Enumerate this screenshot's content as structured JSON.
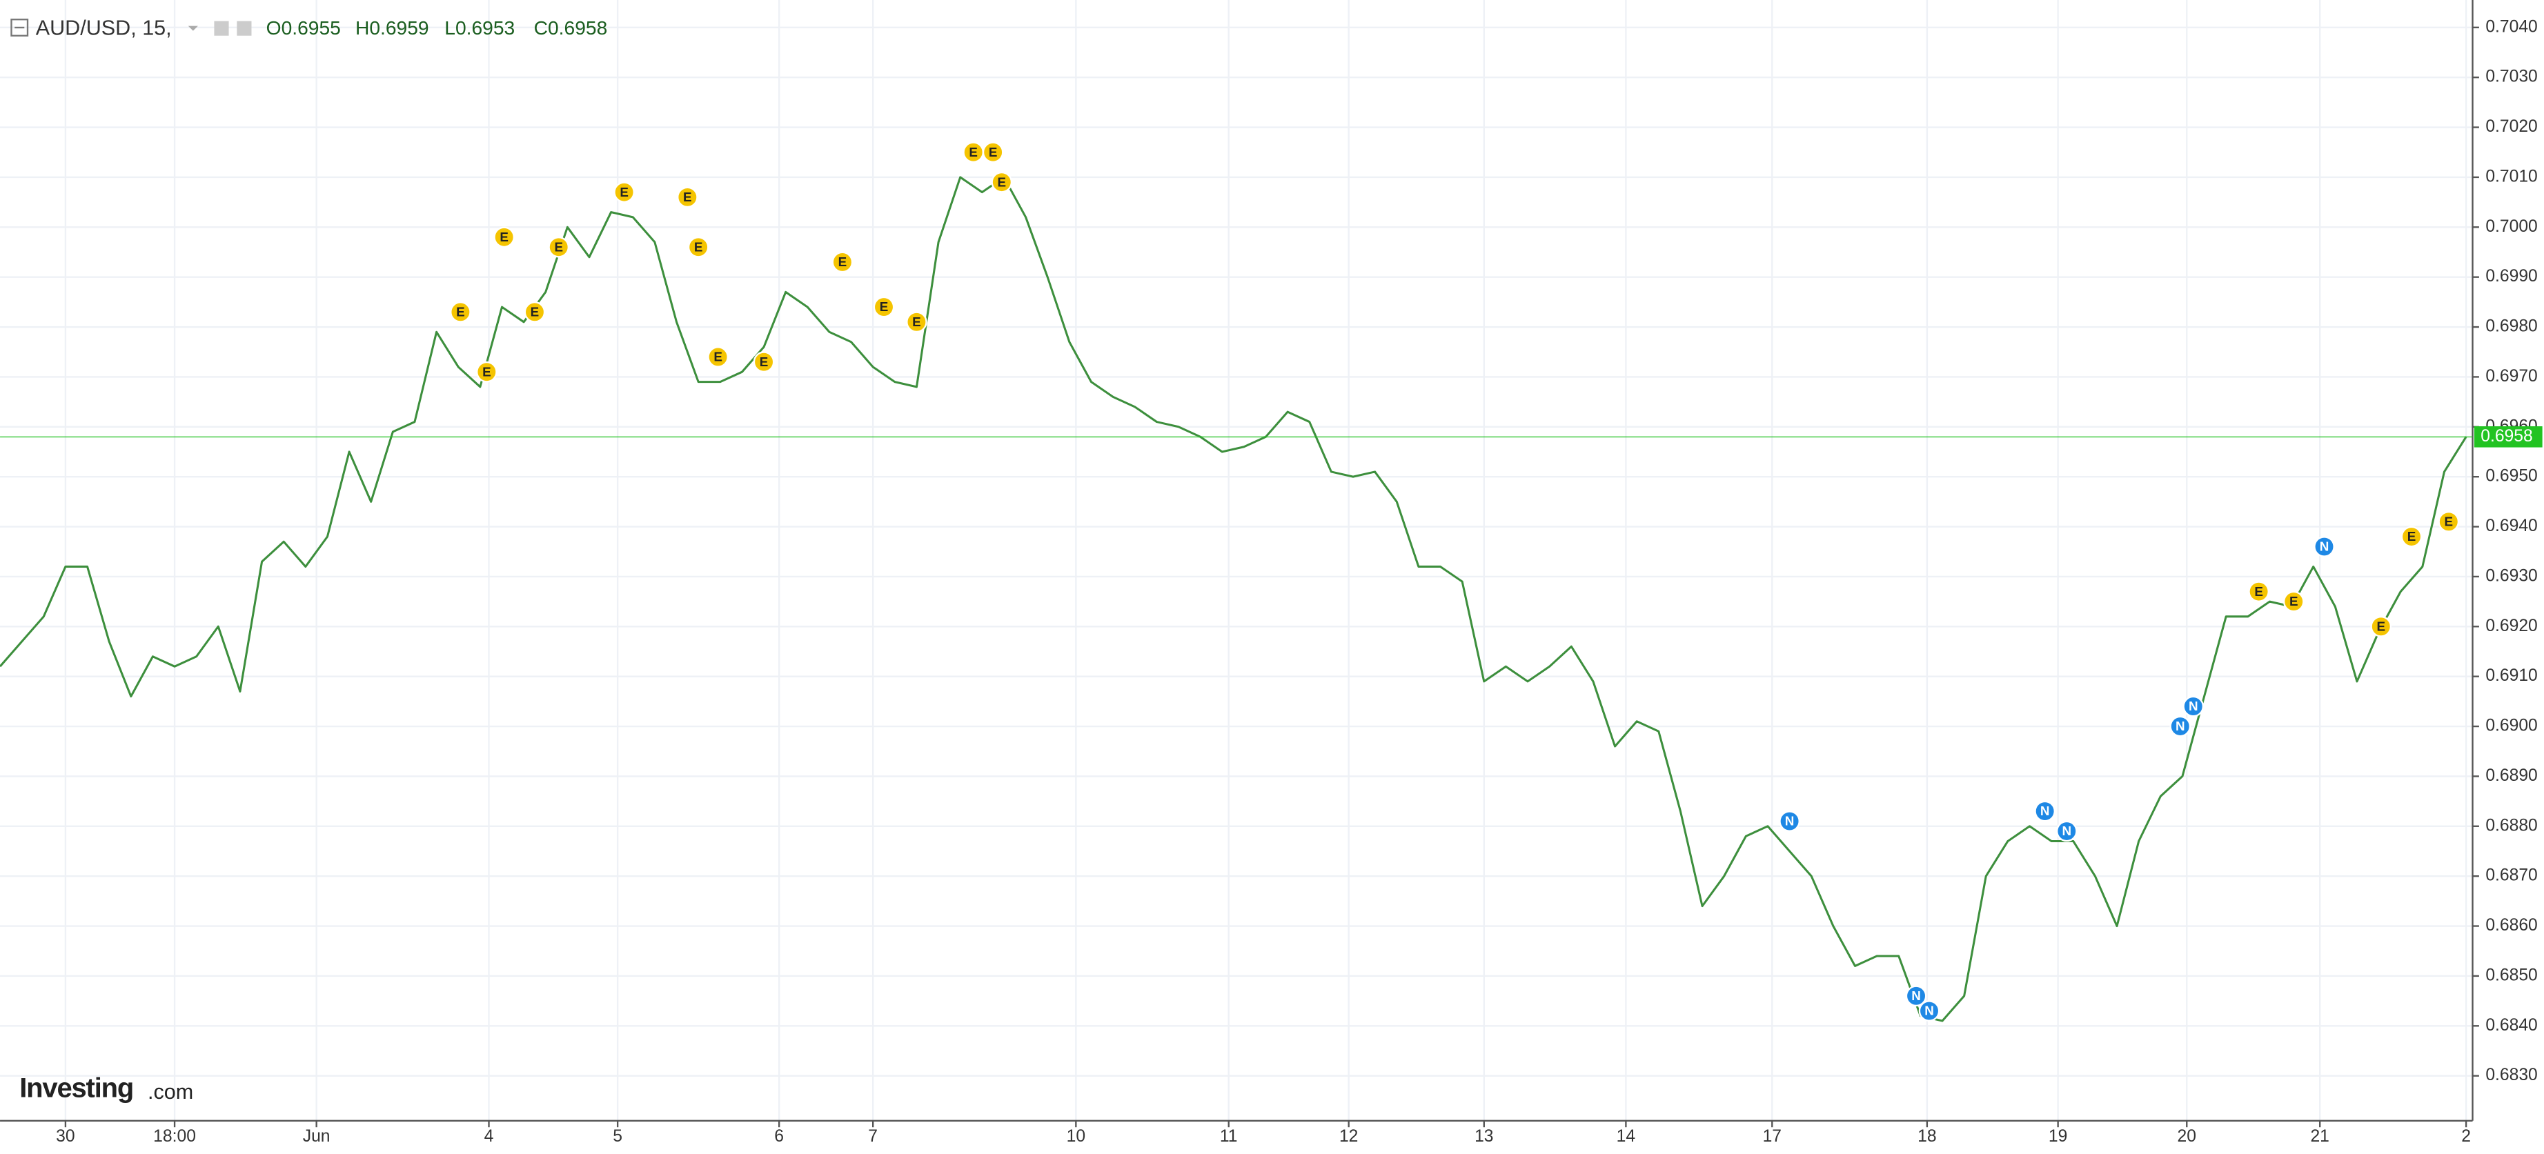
{
  "chart_data": {
    "type": "line",
    "symbol": "AUD/USD, 15,",
    "ohlc": [
      "O0.6955",
      "H0.6959",
      "L0.6953",
      "C0.6958"
    ],
    "brand": "Investing",
    "brand_suffix": ".com",
    "color": "#3d8f3d",
    "values": [
      0.6912,
      0.6917,
      0.6922,
      0.6932,
      0.6932,
      0.6917,
      0.6906,
      0.6914,
      0.6912,
      0.6914,
      0.692,
      0.6907,
      0.6933,
      0.6937,
      0.6932,
      0.6938,
      0.6955,
      0.6945,
      0.6959,
      0.6961,
      0.6979,
      0.6972,
      0.6968,
      0.6984,
      0.6981,
      0.6987,
      0.7,
      0.6994,
      0.7003,
      0.7002,
      0.6997,
      0.6981,
      0.6969,
      0.6969,
      0.6971,
      0.6976,
      0.6987,
      0.6984,
      0.6979,
      0.6977,
      0.6972,
      0.6969,
      0.6968,
      0.6997,
      0.701,
      0.7007,
      0.701,
      0.7002,
      0.699,
      0.6977,
      0.6969,
      0.6966,
      0.6964,
      0.6961,
      0.696,
      0.6958,
      0.6955,
      0.6956,
      0.6958,
      0.6963,
      0.6961,
      0.6951,
      0.695,
      0.6951,
      0.6945,
      0.6932,
      0.6932,
      0.6929,
      0.6909,
      0.6912,
      0.6909,
      0.6912,
      0.6916,
      0.6909,
      0.6896,
      0.6901,
      0.6899,
      0.6883,
      0.6864,
      0.687,
      0.6878,
      0.688,
      0.6875,
      0.687,
      0.686,
      0.6852,
      0.6854,
      0.6854,
      0.6842,
      0.6841,
      0.6846,
      0.687,
      0.6877,
      0.688,
      0.6877,
      0.6877,
      0.687,
      0.686,
      0.6877,
      0.6886,
      0.689,
      0.6906,
      0.6922,
      0.6922,
      0.6925,
      0.6924,
      0.6932,
      0.6924,
      0.6909,
      0.6919,
      0.6927,
      0.6932,
      0.6951,
      0.6958
    ],
    "xlim": [
      0,
      113
    ],
    "xticks": [
      {
        "value": 3,
        "label": "30"
      },
      {
        "value": 8,
        "label": "18:00"
      },
      {
        "value": 14.5,
        "label": "Jun"
      },
      {
        "value": 22.4,
        "label": "4"
      },
      {
        "value": 28.3,
        "label": "5"
      },
      {
        "value": 35.7,
        "label": "6"
      },
      {
        "value": 40,
        "label": "7"
      },
      {
        "value": 49.3,
        "label": "10"
      },
      {
        "value": 56.3,
        "label": "11"
      },
      {
        "value": 61.8,
        "label": "12"
      },
      {
        "value": 68,
        "label": "13"
      },
      {
        "value": 74.5,
        "label": "14"
      },
      {
        "value": 81.2,
        "label": "17"
      },
      {
        "value": 88.3,
        "label": "18"
      },
      {
        "value": 94.3,
        "label": "19"
      },
      {
        "value": 100.2,
        "label": "20"
      },
      {
        "value": 106.3,
        "label": "21"
      },
      {
        "value": 113,
        "label": "2"
      }
    ],
    "ylim": [
      0.6821,
      0.70455
    ],
    "yticks": [
      {
        "value": 0.683,
        "label": "0.6830"
      },
      {
        "value": 0.684,
        "label": "0.6840"
      },
      {
        "value": 0.685,
        "label": "0.6850"
      },
      {
        "value": 0.686,
        "label": "0.6860"
      },
      {
        "value": 0.687,
        "label": "0.6870"
      },
      {
        "value": 0.688,
        "label": "0.6880"
      },
      {
        "value": 0.689,
        "label": "0.6890"
      },
      {
        "value": 0.69,
        "label": "0.6900"
      },
      {
        "value": 0.691,
        "label": "0.6910"
      },
      {
        "value": 0.692,
        "label": "0.6920"
      },
      {
        "value": 0.693,
        "label": "0.6930"
      },
      {
        "value": 0.694,
        "label": "0.6940"
      },
      {
        "value": 0.695,
        "label": "0.6950"
      },
      {
        "value": 0.696,
        "label": "0.6960"
      },
      {
        "value": 0.697,
        "label": "0.6970"
      },
      {
        "value": 0.698,
        "label": "0.6980"
      },
      {
        "value": 0.699,
        "label": "0.6990"
      },
      {
        "value": 0.7,
        "label": "0.7000"
      },
      {
        "value": 0.701,
        "label": "0.7010"
      },
      {
        "value": 0.702,
        "label": "0.7020"
      },
      {
        "value": 0.703,
        "label": "0.7030"
      },
      {
        "value": 0.704,
        "label": "0.7040"
      }
    ],
    "grid": true,
    "last_price": {
      "value": 0.6958,
      "label": "0.6958",
      "color": "#22c322"
    },
    "event_colors": {
      "E": "#f5c400",
      "N": "#1e88e5"
    },
    "events": [
      {
        "label": "E",
        "x": 21.1,
        "y": 0.6983
      },
      {
        "label": "E",
        "x": 22.3,
        "y": 0.6971
      },
      {
        "label": "E",
        "x": 23.1,
        "y": 0.6998
      },
      {
        "label": "E",
        "x": 24.5,
        "y": 0.6983
      },
      {
        "label": "E",
        "x": 25.6,
        "y": 0.6996
      },
      {
        "label": "E",
        "x": 28.6,
        "y": 0.7007
      },
      {
        "label": "E",
        "x": 31.5,
        "y": 0.7006
      },
      {
        "label": "E",
        "x": 32.0,
        "y": 0.6996
      },
      {
        "label": "E",
        "x": 32.9,
        "y": 0.6974
      },
      {
        "label": "E",
        "x": 35.0,
        "y": 0.6973
      },
      {
        "label": "E",
        "x": 38.6,
        "y": 0.6993
      },
      {
        "label": "E",
        "x": 40.5,
        "y": 0.6984
      },
      {
        "label": "E",
        "x": 42.0,
        "y": 0.6981
      },
      {
        "label": "E",
        "x": 44.6,
        "y": 0.7015
      },
      {
        "label": "E",
        "x": 45.5,
        "y": 0.7015
      },
      {
        "label": "E",
        "x": 45.9,
        "y": 0.7009
      },
      {
        "label": "E",
        "x": 103.5,
        "y": 0.6927
      },
      {
        "label": "E",
        "x": 105.1,
        "y": 0.6925
      },
      {
        "label": "E",
        "x": 109.1,
        "y": 0.692
      },
      {
        "label": "E",
        "x": 110.5,
        "y": 0.6938
      },
      {
        "label": "E",
        "x": 112.2,
        "y": 0.6941
      },
      {
        "label": "N",
        "x": 82.0,
        "y": 0.6881
      },
      {
        "label": "N",
        "x": 87.8,
        "y": 0.6846
      },
      {
        "label": "N",
        "x": 88.4,
        "y": 0.6843
      },
      {
        "label": "N",
        "x": 93.7,
        "y": 0.6883
      },
      {
        "label": "N",
        "x": 94.7,
        "y": 0.6879
      },
      {
        "label": "N",
        "x": 99.9,
        "y": 0.69
      },
      {
        "label": "N",
        "x": 100.5,
        "y": 0.6904
      },
      {
        "label": "N",
        "x": 106.5,
        "y": 0.6936
      }
    ]
  }
}
